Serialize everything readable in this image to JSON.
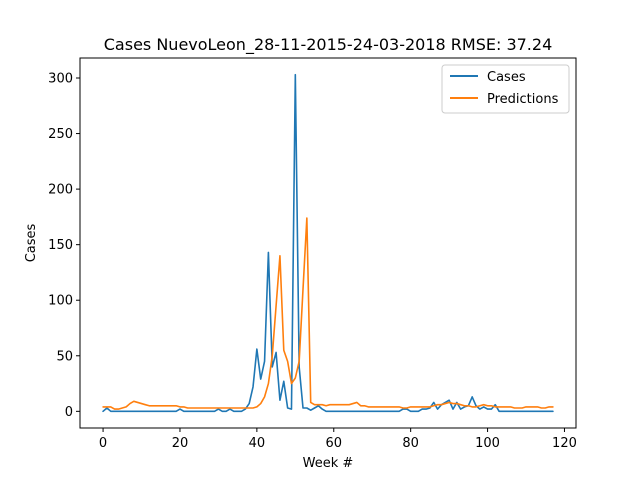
{
  "chart_data": {
    "type": "line",
    "title": "Cases NuevoLeon_28-11-2015-24-03-2018 RMSE: 37.24",
    "xlabel": "Week #",
    "ylabel": "Cases",
    "xlim": [
      -6,
      123
    ],
    "ylim": [
      -15,
      318
    ],
    "xticks": [
      0,
      20,
      40,
      60,
      80,
      100,
      120
    ],
    "yticks": [
      0,
      50,
      100,
      150,
      200,
      250,
      300
    ],
    "grid": false,
    "legend_position": "top-right",
    "series": [
      {
        "name": "Cases",
        "color": "#1f77b4",
        "x": [
          0,
          1,
          2,
          3,
          4,
          5,
          6,
          7,
          8,
          9,
          10,
          11,
          12,
          13,
          14,
          15,
          16,
          17,
          18,
          19,
          20,
          21,
          22,
          23,
          24,
          25,
          26,
          27,
          28,
          29,
          30,
          31,
          32,
          33,
          34,
          35,
          36,
          37,
          38,
          39,
          40,
          41,
          42,
          43,
          44,
          45,
          46,
          47,
          48,
          49,
          50,
          51,
          52,
          53,
          54,
          55,
          56,
          57,
          58,
          59,
          60,
          61,
          62,
          63,
          64,
          65,
          66,
          67,
          68,
          69,
          70,
          71,
          72,
          73,
          74,
          75,
          76,
          77,
          78,
          79,
          80,
          81,
          82,
          83,
          84,
          85,
          86,
          87,
          88,
          89,
          90,
          91,
          92,
          93,
          94,
          95,
          96,
          97,
          98,
          99,
          100,
          101,
          102,
          103,
          104,
          105,
          106,
          107,
          108,
          109,
          110,
          111,
          112,
          113,
          114,
          115,
          116,
          117
        ],
        "values": [
          0,
          3,
          0,
          0,
          0,
          0,
          0,
          0,
          0,
          0,
          0,
          0,
          0,
          0,
          0,
          0,
          0,
          0,
          0,
          0,
          2,
          0,
          0,
          0,
          0,
          0,
          0,
          0,
          0,
          0,
          2,
          0,
          0,
          2,
          0,
          0,
          0,
          2,
          7,
          22,
          56,
          29,
          45,
          143,
          40,
          53,
          10,
          27,
          3,
          2,
          303,
          40,
          3,
          3,
          1,
          3,
          5,
          2,
          0,
          0,
          0,
          0,
          0,
          0,
          0,
          0,
          0,
          0,
          0,
          0,
          0,
          0,
          0,
          0,
          0,
          0,
          0,
          0,
          2,
          2,
          0,
          0,
          0,
          2,
          2,
          3,
          8,
          2,
          6,
          8,
          10,
          2,
          8,
          2,
          4,
          5,
          13,
          5,
          2,
          4,
          2,
          2,
          6,
          0,
          0,
          0,
          0,
          0,
          0,
          0,
          0,
          0,
          0,
          0,
          0,
          0,
          0,
          0
        ]
      },
      {
        "name": "Predictions",
        "color": "#ff7f0e",
        "x": [
          0,
          1,
          2,
          3,
          4,
          5,
          6,
          7,
          8,
          9,
          10,
          11,
          12,
          13,
          14,
          15,
          16,
          17,
          18,
          19,
          20,
          21,
          22,
          23,
          24,
          25,
          26,
          27,
          28,
          29,
          30,
          31,
          32,
          33,
          34,
          35,
          36,
          37,
          38,
          39,
          40,
          41,
          42,
          43,
          44,
          45,
          46,
          47,
          48,
          49,
          50,
          51,
          52,
          53,
          54,
          55,
          56,
          57,
          58,
          59,
          60,
          61,
          62,
          63,
          64,
          65,
          66,
          67,
          68,
          69,
          70,
          71,
          72,
          73,
          74,
          75,
          76,
          77,
          78,
          79,
          80,
          81,
          82,
          83,
          84,
          85,
          86,
          87,
          88,
          89,
          90,
          91,
          92,
          93,
          94,
          95,
          96,
          97,
          98,
          99,
          100,
          101,
          102,
          103,
          104,
          105,
          106,
          107,
          108,
          109,
          110,
          111,
          112,
          113,
          114,
          115,
          116,
          117
        ],
        "values": [
          4,
          4,
          4,
          2,
          2,
          3,
          4,
          7,
          9,
          8,
          7,
          6,
          5,
          5,
          5,
          5,
          5,
          5,
          5,
          5,
          4,
          4,
          3,
          3,
          3,
          3,
          3,
          3,
          3,
          3,
          3,
          3,
          3,
          3,
          3,
          3,
          3,
          3,
          3,
          3,
          4,
          7,
          13,
          25,
          50,
          95,
          140,
          55,
          45,
          25,
          30,
          45,
          110,
          174,
          8,
          6,
          6,
          6,
          5,
          6,
          6,
          6,
          6,
          6,
          6,
          7,
          8,
          5,
          5,
          4,
          4,
          4,
          4,
          4,
          4,
          4,
          4,
          4,
          3,
          3,
          4,
          4,
          4,
          4,
          4,
          4,
          5,
          6,
          6,
          7,
          8,
          7,
          7,
          6,
          5,
          5,
          4,
          4,
          5,
          6,
          5,
          5,
          4,
          4,
          4,
          4,
          4,
          3,
          3,
          3,
          4,
          4,
          4,
          4,
          3,
          3,
          4,
          4
        ]
      }
    ]
  }
}
